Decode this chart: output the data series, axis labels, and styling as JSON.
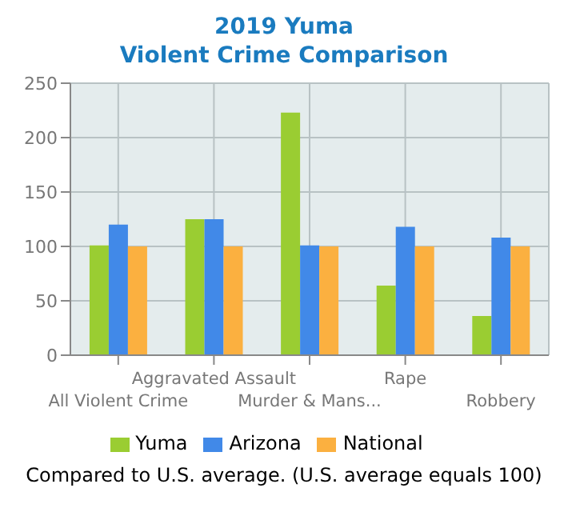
{
  "chart_data": {
    "type": "bar",
    "title": "2019 Yuma",
    "subtitle": "Violent Crime Comparison",
    "categories": [
      "All Violent Crime",
      "Aggravated Assault",
      "Murder & Mans...",
      "Rape",
      "Robbery"
    ],
    "series": [
      {
        "name": "Yuma",
        "color": "#9acd32",
        "values": [
          101,
          125,
          223,
          64,
          36
        ]
      },
      {
        "name": "Arizona",
        "color": "#4189e8",
        "values": [
          120,
          125,
          101,
          118,
          108
        ]
      },
      {
        "name": "National",
        "color": "#fbb040",
        "values": [
          100,
          100,
          100,
          100,
          100
        ]
      }
    ],
    "ylim": [
      0,
      250
    ],
    "yticks": [
      0,
      50,
      100,
      150,
      200,
      250
    ],
    "grid": true,
    "legend": "bottom",
    "annotations": [
      "Compared to U.S. average. (U.S. average equals 100)"
    ]
  }
}
